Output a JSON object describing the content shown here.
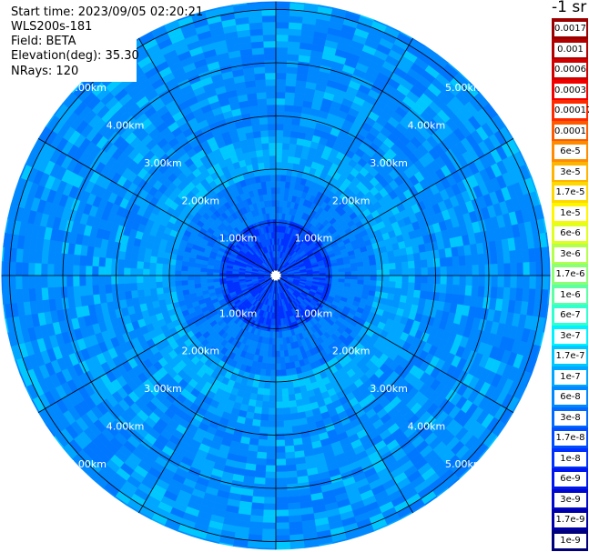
{
  "header": {
    "start_time": "Start time: 2023/09/05 02:20:21",
    "instrument": "WLS200s-181",
    "field": "Field: BETA",
    "elevation": "Elevation(deg): 35.30",
    "nrays": "NRays: 120"
  },
  "colorbar": {
    "title": "-1 sr",
    "labels": [
      "0.0017",
      "0.001",
      "0.0006",
      "0.0003",
      "0.00017",
      "0.0001",
      "6e-5",
      "3e-5",
      "1.7e-5",
      "1e-5",
      "6e-6",
      "3e-6",
      "1.7e-6",
      "1e-6",
      "6e-7",
      "3e-7",
      "1.7e-7",
      "1e-7",
      "6e-8",
      "3e-8",
      "1.7e-8",
      "1e-8",
      "6e-9",
      "3e-9",
      "1.7e-9",
      "1e-9"
    ],
    "colors": [
      "#9a0000",
      "#b00000",
      "#d00000",
      "#f20000",
      "#ff2a00",
      "#ff5a00",
      "#ff8c00",
      "#ffb400",
      "#ffd800",
      "#fff600",
      "#e0ff20",
      "#b4ff4c",
      "#8cff74",
      "#5cffa4",
      "#30ffd0",
      "#00f2ff",
      "#00c8ff",
      "#00a6ff",
      "#0088ff",
      "#006aff",
      "#004cff",
      "#0030ff",
      "#0016ef",
      "#0008cc",
      "#0000a8",
      "#00007a"
    ]
  },
  "range_rings": {
    "labels": [
      "1.00km",
      "2.00km",
      "3.00km",
      "4.00km",
      "5.00km"
    ],
    "ring_km": [
      1,
      2,
      3,
      4,
      5
    ]
  },
  "map": {
    "spokes_deg": [
      0,
      30,
      60,
      90,
      120,
      150,
      180,
      210,
      240,
      270,
      300,
      330
    ],
    "max_range_km": 5.15
  }
}
